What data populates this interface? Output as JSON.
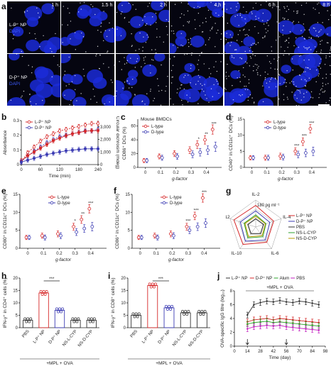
{
  "panels": {
    "a": {
      "letter": "a",
      "times": [
        "1 h",
        "1.5 h",
        "2 h",
        "4 h",
        "6 h",
        "8 h"
      ],
      "row1_label": "L-P⁺ NP",
      "row2_label": "D-P⁺ NP",
      "dapi": "DAPI"
    },
    "b": {
      "letter": "b",
      "ylabel_left": "Absorbance",
      "ylabel_right": "Circular dichroism (mdeg)",
      "xlabel": "Time (min)",
      "legend": [
        "L-P⁺ NP",
        "D-P⁺ NP"
      ]
    },
    "c": {
      "letter": "c",
      "title": "Mouse BMDCs",
      "ylabel": "CD86⁺ DCs (%)",
      "xlabel": "g-factor",
      "legend": [
        "L-type",
        "D-type"
      ]
    },
    "d": {
      "letter": "d",
      "ylabel": "CD40⁺ in CD11c⁺ DCs (%)",
      "xlabel": "g-factor",
      "legend": [
        "L-type",
        "D-type"
      ]
    },
    "e": {
      "letter": "e",
      "ylabel": "CD80⁺ in CD11c⁺ DCs (%)",
      "xlabel": "g-factor",
      "legend": [
        "L-type",
        "D-type"
      ]
    },
    "f": {
      "letter": "f",
      "ylabel": "CD86⁺ in CD11c⁺ DCs (%)",
      "xlabel": "g-factor",
      "legend": [
        "L-type",
        "D-type"
      ]
    },
    "g": {
      "letter": "g",
      "axes": [
        "IL-2",
        "IL-4",
        "IL-6",
        "IL-10",
        "IL-12"
      ],
      "scale": "180 pg ml⁻¹",
      "legend": [
        "L-P⁺ NP",
        "D-P⁺ NP",
        "PBS",
        "NS-L-CYP",
        "NS-D-CYP"
      ]
    },
    "h": {
      "letter": "h",
      "ylabel": "IFN-γ⁺ in CD4⁺ cells (%)",
      "groups": [
        "PBS",
        "L-P⁺ NP",
        "D-P⁺ NP",
        "NS-L-CYP",
        "NS-D-CYP"
      ],
      "footer": "+MPL + OVA",
      "sig": "***"
    },
    "i": {
      "letter": "i",
      "ylabel": "IFN-γ⁺ in CD8⁺ cells (%)",
      "groups": [
        "PBS",
        "L-P⁺ NP",
        "D-P⁺ NP",
        "NS-L-CYP",
        "NS-D-CYP"
      ],
      "footer": "+MPL + OVA",
      "sig": "***"
    },
    "j": {
      "letter": "j",
      "legend": [
        "L-P⁺ NP",
        "D-P⁺ NP",
        "Alum",
        "PBS"
      ],
      "top": "+MPL + OVA",
      "xlabel": "Time (day)",
      "ylabel": "OVA-specific IgG titre (log₁₀)"
    }
  },
  "colors": {
    "red": "#d62728",
    "blue": "#3b3bb3",
    "green": "#2ca02c",
    "magenta": "#c21fbf",
    "dark": "#333333",
    "olive": "#b59a00"
  },
  "chart_data": [
    {
      "id": "b",
      "type": "line",
      "x": [
        0,
        20,
        40,
        60,
        80,
        100,
        120,
        140,
        160,
        180,
        200,
        220,
        240
      ],
      "xlim": [
        0,
        240
      ],
      "ylim": [
        0,
        0.3
      ],
      "y2lim": [
        0,
        3500
      ],
      "xticks": [
        0,
        60,
        120,
        180,
        240
      ],
      "yticks": [
        0,
        0.1,
        0.2,
        0.3
      ],
      "y2ticks": [
        0,
        1000,
        2000,
        3000
      ],
      "series": [
        {
          "name": "L-P⁺ NP",
          "axis": "left",
          "values": [
            0.02,
            0.08,
            0.12,
            0.16,
            0.19,
            0.21,
            0.23,
            0.24,
            0.25,
            0.26,
            0.27,
            0.28,
            0.28
          ]
        },
        {
          "name": "D-P⁺ NP",
          "axis": "left",
          "values": [
            0.02,
            0.06,
            0.09,
            0.12,
            0.15,
            0.17,
            0.19,
            0.2,
            0.21,
            0.22,
            0.23,
            0.23,
            0.24
          ]
        },
        {
          "name": "L-P⁺ NP",
          "axis": "right",
          "values": [
            300,
            700,
            1000,
            1300,
            1600,
            1900,
            2100,
            2300,
            2450,
            2550,
            2650,
            2700,
            2700
          ]
        },
        {
          "name": "D-P⁺ NP",
          "axis": "right",
          "values": [
            200,
            350,
            500,
            650,
            800,
            900,
            1000,
            1100,
            1150,
            1200,
            1250,
            1250,
            1250
          ]
        }
      ]
    },
    {
      "id": "c",
      "type": "scatter",
      "xlim": [
        -0.05,
        0.5
      ],
      "ylim": [
        0,
        70
      ],
      "xticks": [
        0,
        0.1,
        0.2,
        0.3,
        0.4
      ],
      "yticks": [
        0,
        20,
        40,
        60
      ],
      "series": [
        {
          "name": "L-type",
          "x": [
            0,
            0.1,
            0.2,
            0.3,
            0.35,
            0.4,
            0.45
          ],
          "values": [
            10,
            16,
            20,
            25,
            33,
            40,
            55
          ]
        },
        {
          "name": "D-type",
          "x": [
            0,
            0.1,
            0.2,
            0.3,
            0.35,
            0.4,
            0.45
          ],
          "values": [
            10,
            14,
            16,
            19,
            22,
            25,
            30
          ]
        }
      ],
      "annotations": [
        "*",
        "**",
        "***"
      ]
    },
    {
      "id": "d",
      "type": "scatter",
      "xlim": [
        -0.05,
        0.5
      ],
      "ylim": [
        0,
        15
      ],
      "xticks": [
        0,
        0.1,
        0.2,
        0.3,
        0.4
      ],
      "yticks": [
        0,
        5,
        10,
        15
      ],
      "series": [
        {
          "name": "L-type",
          "x": [
            0,
            0.1,
            0.2,
            0.3,
            0.35,
            0.4
          ],
          "values": [
            3,
            3,
            3.5,
            5,
            8,
            12
          ]
        },
        {
          "name": "D-type",
          "x": [
            0,
            0.1,
            0.2,
            0.3,
            0.35,
            0.4
          ],
          "values": [
            3,
            3,
            3.2,
            4,
            4.5,
            5
          ]
        }
      ],
      "annotations": [
        "***",
        "***",
        "***"
      ]
    },
    {
      "id": "e",
      "type": "scatter",
      "xlim": [
        -0.05,
        0.5
      ],
      "ylim": [
        0,
        15
      ],
      "xticks": [
        0,
        0.1,
        0.2,
        0.3,
        0.4
      ],
      "yticks": [
        0,
        5,
        10,
        15
      ],
      "series": [
        {
          "name": "L-type",
          "x": [
            0,
            0.1,
            0.2,
            0.3,
            0.35,
            0.4
          ],
          "values": [
            3,
            3.5,
            4,
            6,
            8,
            11
          ]
        },
        {
          "name": "D-type",
          "x": [
            0,
            0.1,
            0.2,
            0.3,
            0.35,
            0.4
          ],
          "values": [
            3,
            3,
            3.5,
            4.5,
            5.5,
            6
          ]
        }
      ],
      "annotations": [
        "*",
        "**",
        "***"
      ]
    },
    {
      "id": "f",
      "type": "scatter",
      "xlim": [
        -0.05,
        0.5
      ],
      "ylim": [
        0,
        15
      ],
      "xticks": [
        0,
        0.1,
        0.2,
        0.3,
        0.4
      ],
      "yticks": [
        0,
        5,
        10,
        15
      ],
      "series": [
        {
          "name": "L-type",
          "x": [
            0,
            0.1,
            0.2,
            0.3,
            0.35,
            0.4
          ],
          "values": [
            3,
            3.5,
            4,
            6,
            9,
            14
          ]
        },
        {
          "name": "D-type",
          "x": [
            0,
            0.1,
            0.2,
            0.3,
            0.35,
            0.4
          ],
          "values": [
            3,
            3,
            3.5,
            5,
            6,
            7
          ]
        }
      ],
      "annotations": [
        "***",
        "***",
        "***"
      ]
    },
    {
      "id": "h",
      "type": "bar",
      "ylim": [
        0,
        20
      ],
      "yticks": [
        0,
        5,
        10,
        15,
        20
      ],
      "categories": [
        "PBS",
        "L-P⁺ NP",
        "D-P⁺ NP",
        "NS-L-CYP",
        "NS-D-CYP"
      ],
      "values": [
        3,
        14,
        7,
        3,
        3
      ]
    },
    {
      "id": "i",
      "type": "bar",
      "ylim": [
        0,
        20
      ],
      "yticks": [
        0,
        5,
        10,
        15,
        20
      ],
      "categories": [
        "PBS",
        "L-P⁺ NP",
        "D-P⁺ NP",
        "NS-L-CYP",
        "NS-D-CYP"
      ],
      "values": [
        5,
        17,
        8,
        6,
        6
      ]
    },
    {
      "id": "j",
      "type": "line",
      "xlim": [
        0,
        98
      ],
      "ylim": [
        0,
        8
      ],
      "xticks": [
        0,
        14,
        28,
        42,
        56,
        70,
        84,
        98
      ],
      "yticks": [
        0,
        2,
        4,
        6,
        8
      ],
      "x": [
        14,
        21,
        28,
        35,
        42,
        49,
        56,
        63,
        70,
        77,
        84,
        91
      ],
      "series": [
        {
          "name": "L-P⁺ NP",
          "values": [
            4.5,
            6,
            6.3,
            6.5,
            6.4,
            6.6,
            6.4,
            6.3,
            6.5,
            6.4,
            6.2,
            6.0
          ]
        },
        {
          "name": "D-P⁺ NP",
          "values": [
            3.5,
            3.8,
            3.9,
            4.0,
            3.8,
            4.0,
            3.9,
            3.8,
            3.7,
            3.6,
            3.5,
            3.4
          ]
        },
        {
          "name": "Alum",
          "values": [
            3.2,
            3.4,
            3.5,
            3.6,
            3.4,
            3.5,
            3.4,
            3.3,
            3.2,
            3.1,
            3.0,
            2.9
          ]
        },
        {
          "name": "PBS",
          "values": [
            2.5,
            2.8,
            2.9,
            3.0,
            2.9,
            3.0,
            2.8,
            2.7,
            2.6,
            2.5,
            2.4,
            2.3
          ]
        }
      ]
    },
    {
      "id": "g",
      "type": "radar",
      "categories": [
        "IL-2",
        "IL-4",
        "IL-6",
        "IL-10",
        "IL-12"
      ],
      "series": [
        {
          "name": "L-P⁺ NP",
          "values": [
            0.8,
            0.7,
            0.7,
            0.8,
            0.85
          ]
        },
        {
          "name": "D-P⁺ NP",
          "values": [
            0.6,
            0.55,
            0.6,
            0.65,
            0.6
          ]
        },
        {
          "name": "PBS",
          "values": [
            0.3,
            0.3,
            0.3,
            0.3,
            0.3
          ]
        },
        {
          "name": "NS-L-CYP",
          "values": [
            0.45,
            0.4,
            0.45,
            0.5,
            0.45
          ]
        },
        {
          "name": "NS-D-CYP",
          "values": [
            0.4,
            0.38,
            0.4,
            0.45,
            0.42
          ]
        }
      ]
    }
  ]
}
